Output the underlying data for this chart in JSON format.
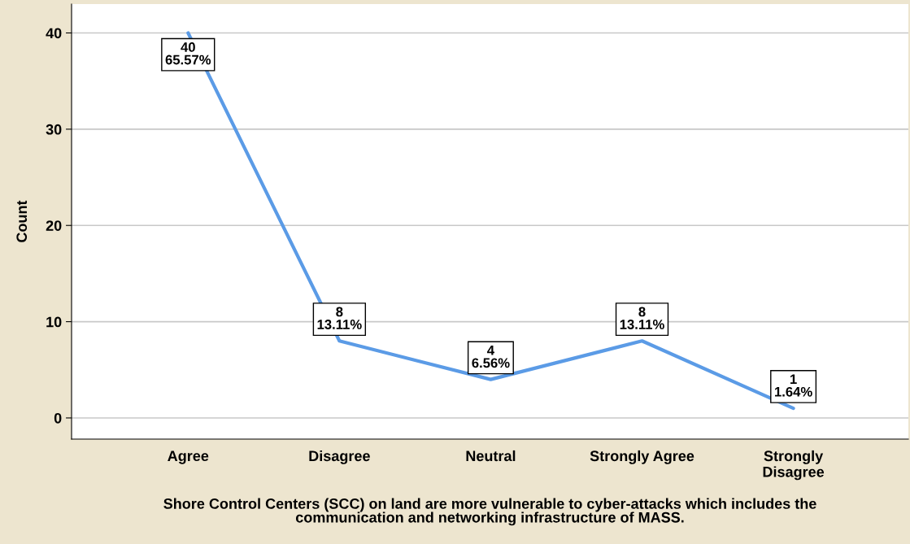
{
  "chart_data": {
    "type": "line",
    "categories": [
      "Agree",
      "Disagree",
      "Neutral",
      "Strongly Agree",
      "Strongly\nDisagree"
    ],
    "series": [
      {
        "color": "#5b9be6",
        "values": [
          40,
          8,
          4,
          8,
          1
        ],
        "value_labels": [
          "40\n65.57%",
          "8\n13.11%",
          "4\n6.56%",
          "8\n13.11%",
          "1\n1.64%"
        ]
      }
    ],
    "ylabel": "Count",
    "xlabel": "Shore Control Centers (SCC) on land are more vulnerable to cyber-attacks which includes the\ncommunication and networking infrastructure of MASS.",
    "ylim": [
      -2.2,
      43
    ],
    "yticks": [
      0,
      10,
      20,
      30,
      40
    ],
    "grid": "y",
    "line_style": "solid",
    "legend": false
  }
}
